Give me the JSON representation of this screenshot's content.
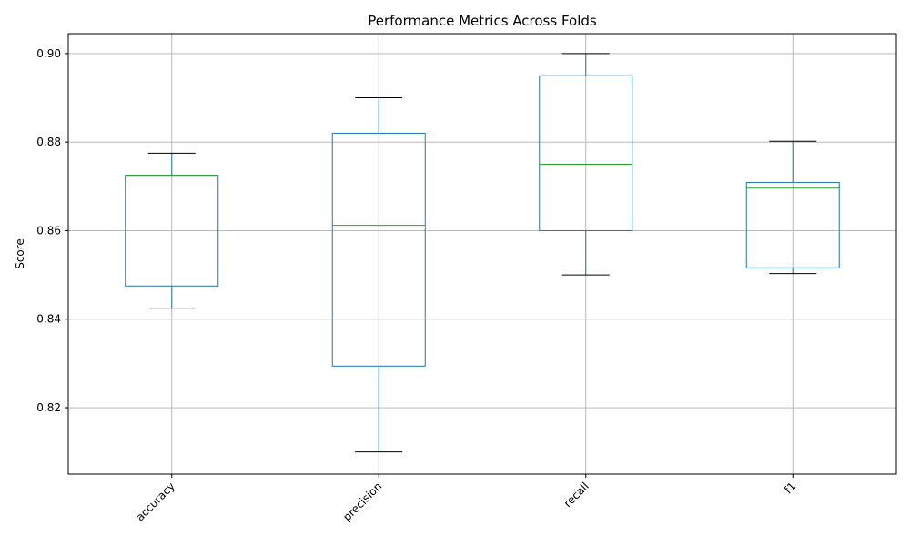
{
  "chart_data": {
    "type": "box",
    "title": "Performance Metrics Across Folds",
    "xlabel": "",
    "ylabel": "Score",
    "ylim": [
      0.805,
      0.9045
    ],
    "yticks": [
      0.82,
      0.84,
      0.86,
      0.88,
      0.9
    ],
    "ytick_labels": [
      "0.82",
      "0.84",
      "0.86",
      "0.88",
      "0.90"
    ],
    "grid": true,
    "categories": [
      "accuracy",
      "precision",
      "recall",
      "f1"
    ],
    "boxes": [
      {
        "category": "accuracy",
        "whisker_low": 0.8425,
        "q1": 0.8475,
        "median": 0.8725,
        "q3": 0.8725,
        "whisker_high": 0.8775
      },
      {
        "category": "precision",
        "whisker_low": 0.81,
        "q1": 0.8294,
        "median": 0.8612,
        "q3": 0.882,
        "whisker_high": 0.89
      },
      {
        "category": "recall",
        "whisker_low": 0.85,
        "q1": 0.86,
        "median": 0.875,
        "q3": 0.895,
        "whisker_high": 0.9
      },
      {
        "category": "f1",
        "whisker_low": 0.8503,
        "q1": 0.8516,
        "median": 0.8696,
        "q3": 0.8709,
        "whisker_high": 0.8802
      }
    ],
    "colors": {
      "box": "#1f77b4",
      "median": "#2ca02c",
      "cap": "#000000",
      "grid": "#b0b0b0"
    }
  }
}
